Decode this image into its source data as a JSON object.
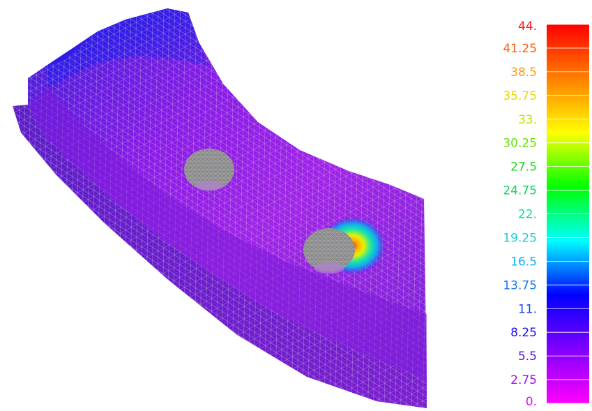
{
  "colorbar": {
    "min": 0,
    "max": 44,
    "labels": [
      {
        "text": "44.",
        "value": 44,
        "color": "#ff1a1a"
      },
      {
        "text": "41.25",
        "value": 41.25,
        "color": "#ff5a10"
      },
      {
        "text": "38.5",
        "value": 38.5,
        "color": "#ff9a10"
      },
      {
        "text": "35.75",
        "value": 35.75,
        "color": "#e8d800"
      },
      {
        "text": "33.",
        "value": 33,
        "color": "#b8e800"
      },
      {
        "text": "30.25",
        "value": 30.25,
        "color": "#66e000"
      },
      {
        "text": "27.5",
        "value": 27.5,
        "color": "#1ad81a"
      },
      {
        "text": "24.75",
        "value": 24.75,
        "color": "#10d860"
      },
      {
        "text": "22.",
        "value": 22,
        "color": "#10d8a0"
      },
      {
        "text": "19.25",
        "value": 19.25,
        "color": "#10d0d8"
      },
      {
        "text": "16.5",
        "value": 16.5,
        "color": "#10b0f0"
      },
      {
        "text": "13.75",
        "value": 13.75,
        "color": "#1a78f0"
      },
      {
        "text": "11.",
        "value": 11,
        "color": "#1a40f0"
      },
      {
        "text": "8.25",
        "value": 8.25,
        "color": "#1a10f0"
      },
      {
        "text": "5.5",
        "value": 5.5,
        "color": "#5a10f0"
      },
      {
        "text": "2.75",
        "value": 2.75,
        "color": "#a010f0"
      },
      {
        "text": "0.",
        "value": 0,
        "color": "#e010f0"
      }
    ],
    "gradient_stops": [
      "#ff0000",
      "#ff7f00",
      "#ffff00",
      "#00ff00",
      "#00ffff",
      "#0000ff",
      "#8000ff",
      "#ff00ff"
    ]
  },
  "model": {
    "base_color": "#8a22e0",
    "mesh_color": "#c8c8d8",
    "hotspot_peak_value": 44
  }
}
